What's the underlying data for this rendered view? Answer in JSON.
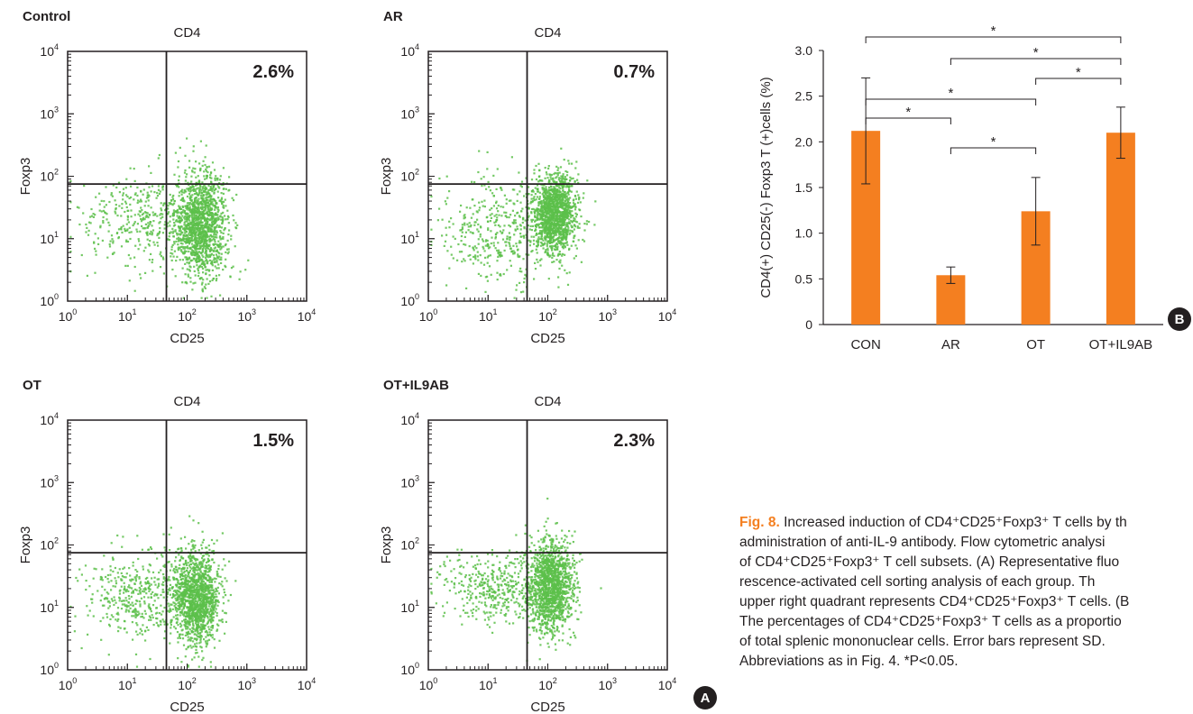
{
  "figure": {
    "panel_a_badge": "A",
    "panel_b_badge": "B",
    "caption": {
      "lines": [
        "Increased induction of CD4⁺CD25⁺Foxp3⁺ T cells by th",
        "administration of anti-IL-9 antibody. Flow cytometric analysi",
        "of CD4⁺CD25⁺Foxp3⁺ T cell subsets. (A) Representative fluo",
        "rescence-activated cell sorting analysis of each group. Th",
        "upper right quadrant represents CD4⁺CD25⁺Foxp3⁺ T cells. (B",
        "The percentages of CD4⁺CD25⁺Foxp3⁺ T cells as a proportio",
        "of total splenic mononuclear cells. Error bars represent SD.",
        "Abbreviations as in Fig. 4. *P<0.05."
      ],
      "fig_label": "Fig. 8."
    }
  },
  "colors": {
    "dots": "#5cbf4a",
    "bars": "#f47f20",
    "axis": "#231f20",
    "caption_accent": "#f47f20"
  },
  "chart_data": [
    {
      "type": "scatter",
      "panel": "A",
      "title": "CD4",
      "group": "Control",
      "xlabel": "CD25",
      "ylabel": "Foxp3",
      "log_scale": true,
      "xlim": [
        1,
        10000
      ],
      "ylim": [
        1,
        10000
      ],
      "tick_labels": [
        "10",
        "10",
        "10",
        "10",
        "10"
      ],
      "tick_exponents": [
        "0",
        "1",
        "2",
        "3",
        "4"
      ],
      "quadrant_gate": {
        "x": 45,
        "y": 75
      },
      "upper_right_percent": "2.6%",
      "cluster": {
        "center": [
          170,
          17
        ],
        "sd_log": [
          0.22,
          0.42
        ]
      },
      "tail": {
        "center": [
          22,
          20
        ],
        "sd_log": [
          0.55,
          0.35
        ]
      }
    },
    {
      "type": "scatter",
      "panel": "A",
      "title": "CD4",
      "group": "AR",
      "xlabel": "CD25",
      "ylabel": "Foxp3",
      "log_scale": true,
      "xlim": [
        1,
        10000
      ],
      "ylim": [
        1,
        10000
      ],
      "tick_labels": [
        "10",
        "10",
        "10",
        "10",
        "10"
      ],
      "tick_exponents": [
        "0",
        "1",
        "2",
        "3",
        "4"
      ],
      "quadrant_gate": {
        "x": 45,
        "y": 75
      },
      "upper_right_percent": "0.7%",
      "cluster": {
        "center": [
          130,
          25
        ],
        "sd_log": [
          0.18,
          0.32
        ]
      },
      "tail": {
        "center": [
          15,
          14
        ],
        "sd_log": [
          0.5,
          0.45
        ]
      }
    },
    {
      "type": "scatter",
      "panel": "A",
      "title": "CD4",
      "group": "OT",
      "xlabel": "CD25",
      "ylabel": "Foxp3",
      "log_scale": true,
      "xlim": [
        1,
        10000
      ],
      "ylim": [
        1,
        10000
      ],
      "tick_labels": [
        "10",
        "10",
        "10",
        "10",
        "10"
      ],
      "tick_exponents": [
        "0",
        "1",
        "2",
        "3",
        "4"
      ],
      "quadrant_gate": {
        "x": 45,
        "y": 75
      },
      "upper_right_percent": "1.5%",
      "cluster": {
        "center": [
          140,
          14
        ],
        "sd_log": [
          0.2,
          0.38
        ]
      },
      "tail": {
        "center": [
          14,
          15
        ],
        "sd_log": [
          0.45,
          0.35
        ]
      }
    },
    {
      "type": "scatter",
      "panel": "A",
      "title": "CD4",
      "group": "OT+IL9AB",
      "xlabel": "CD25",
      "ylabel": "Foxp3",
      "log_scale": true,
      "xlim": [
        1,
        10000
      ],
      "ylim": [
        1,
        10000
      ],
      "tick_labels": [
        "10",
        "10",
        "10",
        "10",
        "10"
      ],
      "tick_exponents": [
        "0",
        "1",
        "2",
        "3",
        "4"
      ],
      "quadrant_gate": {
        "x": 45,
        "y": 75
      },
      "upper_right_percent": "2.3%",
      "cluster": {
        "center": [
          110,
          22
        ],
        "sd_log": [
          0.2,
          0.38
        ]
      },
      "tail": {
        "center": [
          14,
          20
        ],
        "sd_log": [
          0.45,
          0.3
        ]
      }
    },
    {
      "type": "bar",
      "panel": "B",
      "categories": [
        "CON",
        "AR",
        "OT",
        "OT+IL9AB"
      ],
      "values": [
        2.12,
        0.54,
        1.24,
        2.1
      ],
      "errors": [
        0.58,
        0.09,
        0.37,
        0.28
      ],
      "ylabel": "CD4(+) CD25(-) Foxp3 T (+)cells (%)",
      "ylim": [
        0,
        3.0
      ],
      "yticks": [
        "0",
        "0.5",
        "1.0",
        "1.5",
        "2.0",
        "2.5",
        "3.0"
      ],
      "significance": [
        {
          "from": 0,
          "to": 3,
          "label": "*"
        },
        {
          "from": 1,
          "to": 3,
          "label": "*"
        },
        {
          "from": 2,
          "to": 3,
          "label": "*"
        },
        {
          "from": 0,
          "to": 2,
          "label": "*"
        },
        {
          "from": 0,
          "to": 1,
          "label": "*"
        },
        {
          "from": 1,
          "to": 2,
          "label": "*"
        }
      ]
    }
  ]
}
